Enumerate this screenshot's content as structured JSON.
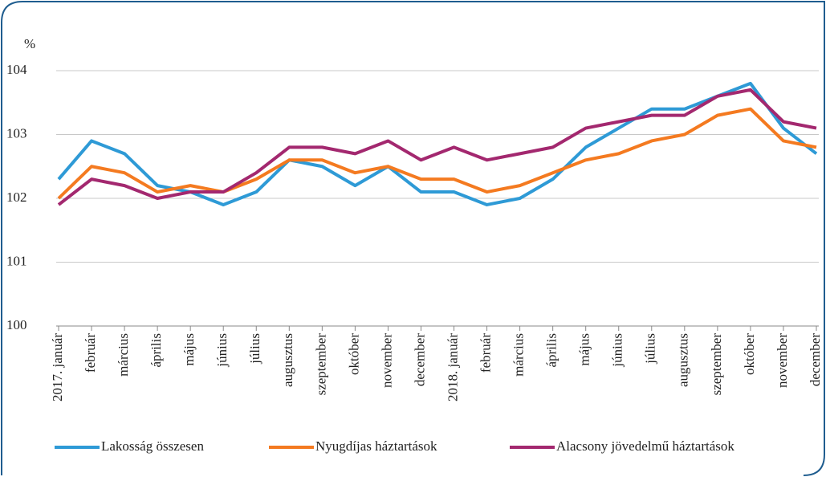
{
  "chart_data": {
    "type": "line",
    "y_unit": "%",
    "categories": [
      "2017. január",
      "február",
      "március",
      "április",
      "május",
      "június",
      "július",
      "augusztus",
      "szeptember",
      "október",
      "november",
      "december",
      "2018. január",
      "február",
      "március",
      "április",
      "május",
      "június",
      "július",
      "augusztus",
      "szeptember",
      "október",
      "november",
      "december"
    ],
    "series": [
      {
        "name": "Lakosság összesen",
        "color": "#2e9ad6",
        "values": [
          102.3,
          102.9,
          102.7,
          102.2,
          102.1,
          101.9,
          102.1,
          102.6,
          102.5,
          102.2,
          102.5,
          102.1,
          102.1,
          101.9,
          102.0,
          102.3,
          102.8,
          103.1,
          103.4,
          103.4,
          103.6,
          103.8,
          103.1,
          102.7
        ]
      },
      {
        "name": "Nyugdíjas háztartások",
        "color": "#f47a20",
        "values": [
          102.0,
          102.5,
          102.4,
          102.1,
          102.2,
          102.1,
          102.3,
          102.6,
          102.6,
          102.4,
          102.5,
          102.3,
          102.3,
          102.1,
          102.2,
          102.4,
          102.6,
          102.7,
          102.9,
          103.0,
          103.3,
          103.4,
          102.9,
          102.8
        ]
      },
      {
        "name": "Alacsony jövedelmű háztartások",
        "color": "#a3286f",
        "values": [
          101.9,
          102.3,
          102.2,
          102.0,
          102.1,
          102.1,
          102.4,
          102.8,
          102.8,
          102.7,
          102.9,
          102.6,
          102.8,
          102.6,
          102.7,
          102.8,
          103.1,
          103.2,
          103.3,
          103.3,
          103.6,
          103.7,
          103.2,
          103.1
        ]
      }
    ],
    "ylim": [
      100,
      104
    ],
    "yticks": [
      100,
      101,
      102,
      103,
      104
    ],
    "grid": true,
    "legend": "bottom"
  }
}
